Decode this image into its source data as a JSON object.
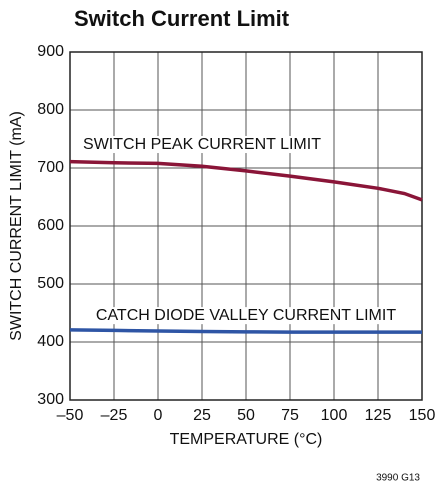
{
  "chart_data": {
    "type": "line",
    "title": "Switch Current Limit",
    "xlabel": "TEMPERATURE (°C)",
    "ylabel": "SWITCH CURRENT LIMIT (mA)",
    "footnote": "3990 G13",
    "annotations": [
      "SWITCH PEAK CURRENT LIMIT",
      "CATCH DIODE VALLEY CURRENT LIMIT"
    ],
    "x": [
      -50,
      -25,
      0,
      25,
      50,
      75,
      100,
      125,
      140,
      150
    ],
    "series": [
      {
        "name": "SWITCH PEAK CURRENT LIMIT",
        "color": "#8a1538",
        "values": [
          711,
          709,
          708,
          703,
          695,
          686,
          676,
          665,
          656,
          645
        ]
      },
      {
        "name": "CATCH DIODE VALLEY CURRENT LIMIT",
        "color": "#2e55a5",
        "values": [
          421,
          420,
          419,
          418,
          417.5,
          417,
          417,
          417,
          417,
          417
        ]
      }
    ],
    "xlim": [
      -50,
      150
    ],
    "xticks": [
      {
        "value": -50,
        "label": "–50"
      },
      {
        "value": -25,
        "label": "–25"
      },
      0,
      25,
      50,
      75,
      100,
      125,
      150
    ],
    "ylim": [
      300,
      900
    ],
    "yticks": [
      300,
      400,
      500,
      600,
      700,
      800,
      900
    ],
    "grid": true
  }
}
